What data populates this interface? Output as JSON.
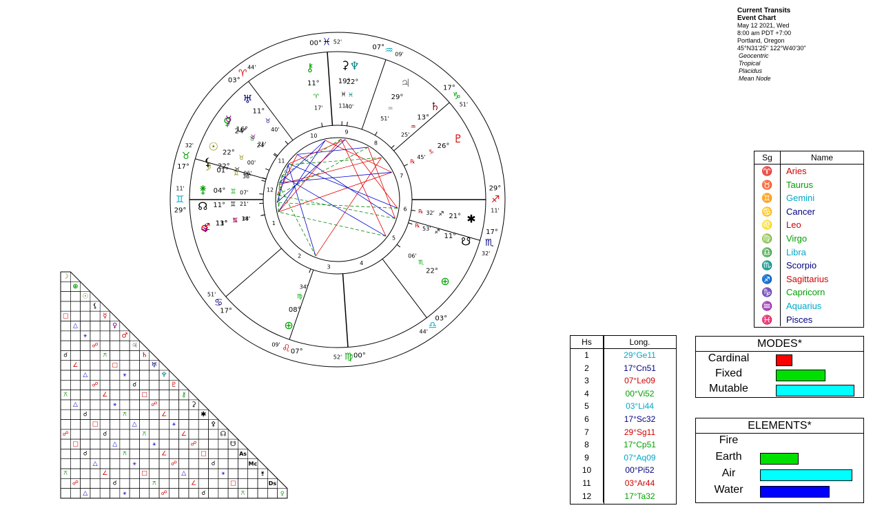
{
  "header": {
    "title": "Current Transits",
    "subtitle": "Event Chart",
    "lines": [
      "May 12 2021, Wed",
      "8:00 am  PDT +7:00",
      "Portland, Oregon",
      "45°N31'25\"  122°W40'30\""
    ],
    "options": [
      "Geocentric",
      "Tropical",
      "Placidus",
      "Mean Node"
    ]
  },
  "colors": {
    "fire": "#d00000",
    "earth": "#00a000",
    "air": "#00a8c8",
    "water": "#000080",
    "mode_cardinal": "#ff0000",
    "mode_fixed": "#00e000",
    "mode_mutable": "#00ffff",
    "el_earth": "#00e000",
    "el_air": "#00ffff",
    "el_water": "#0000ff",
    "aspect_red": "#e00000",
    "aspect_blue": "#0000cc",
    "aspect_green": "#008800"
  },
  "wheel": {
    "cusp_labels": [
      {
        "deg": "29°",
        "min": "11'",
        "sign": "♊",
        "color": "#00a8c8"
      },
      {
        "deg": "17°",
        "min": "51'",
        "sign": "♋",
        "color": "#000080"
      },
      {
        "deg": "07°",
        "min": "09'",
        "sign": "♌",
        "color": "#d00000"
      },
      {
        "deg": "00°",
        "min": "52'",
        "sign": "♍",
        "color": "#00a000"
      },
      {
        "deg": "03°",
        "min": "44'",
        "sign": "♎",
        "color": "#00a8c8"
      },
      {
        "deg": "17°",
        "min": "32'",
        "sign": "♏",
        "color": "#000080"
      },
      {
        "deg": "29°",
        "min": "11'",
        "sign": "♐",
        "color": "#d00000"
      },
      {
        "deg": "17°",
        "min": "51'",
        "sign": "♑",
        "color": "#00a000"
      },
      {
        "deg": "07°",
        "min": "09'",
        "sign": "♒",
        "color": "#00a8c8"
      },
      {
        "deg": "00°",
        "min": "52'",
        "sign": "♓",
        "color": "#000080"
      },
      {
        "deg": "03°",
        "min": "44'",
        "sign": "♈",
        "color": "#d00000"
      },
      {
        "deg": "17°",
        "min": "32'",
        "sign": "♉",
        "color": "#00a000"
      }
    ],
    "house_numbers": [
      "1",
      "2",
      "3",
      "4",
      "5",
      "6",
      "7",
      "8",
      "9",
      "10",
      "11",
      "12"
    ],
    "planets": [
      {
        "name": "Mars",
        "glyph": "♂",
        "deg": "11°",
        "sign": "♋",
        "min": "38'",
        "color": "#d00000"
      },
      {
        "name": "Part of Fortune",
        "glyph": "⊕",
        "deg": "08°",
        "sign": "♍",
        "min": "34'",
        "color": "#00a000"
      },
      {
        "name": "South Node",
        "glyph": "☋",
        "deg": "11°",
        "sign": "♐",
        "min": "53'",
        "retro": "℞",
        "color": "#000"
      },
      {
        "name": "Vertex",
        "glyph": "✱",
        "deg": "21°",
        "sign": "♐",
        "min": "32'",
        "retro": "℞",
        "color": "#000"
      },
      {
        "name": "Pallas",
        "glyph": "⊕",
        "deg": "22°",
        "sign": "♏",
        "min": "06'",
        "color": "#00a000"
      },
      {
        "name": "Pluto",
        "glyph": "♇",
        "deg": "26°",
        "sign": "♑",
        "min": "45'",
        "retro": "℞",
        "color": "#d00000"
      },
      {
        "name": "Saturn",
        "glyph": "♄",
        "deg": "13°",
        "sign": "♒",
        "min": "25'",
        "color": "#8b0000"
      },
      {
        "name": "Jupiter",
        "glyph": "♃",
        "deg": "29°",
        "sign": "♒",
        "min": "51'",
        "color": "#808080"
      },
      {
        "name": "Neptune",
        "glyph": "♆",
        "deg": "22°",
        "sign": "♓",
        "min": "40'",
        "color": "#008080"
      },
      {
        "name": "Ceres",
        "glyph": "⚳",
        "deg": "19°",
        "sign": "♓",
        "min": "11'",
        "color": "#000"
      },
      {
        "name": "Chiron",
        "glyph": "⚷",
        "deg": "11°",
        "sign": "♈",
        "min": "17'",
        "color": "#00a000"
      },
      {
        "name": "Venus",
        "glyph": "♀",
        "deg": "24°",
        "sign": "♉",
        "min": "24'",
        "color": "#00a000"
      },
      {
        "name": "Uranus",
        "glyph": "♅",
        "deg": "11°",
        "sign": "♉",
        "min": "40'",
        "color": "#000080"
      },
      {
        "name": "Mercury",
        "glyph": "☿",
        "deg": "16°",
        "sign": "♉",
        "min": "21'",
        "color": "#800080"
      },
      {
        "name": "Sun",
        "glyph": "☉",
        "deg": "22°",
        "sign": "♉",
        "min": "00'",
        "color": "#808000"
      },
      {
        "name": "Lilith",
        "glyph": "⚸",
        "deg": "22°",
        "sign": "♉",
        "min": "06'",
        "color": "#000"
      },
      {
        "name": "Moon",
        "glyph": "☽",
        "deg": "01°",
        "sign": "♊",
        "min": "36'",
        "color": "#808000"
      },
      {
        "name": "Juno",
        "glyph": "⚵",
        "deg": "04°",
        "sign": "♊",
        "min": "07'",
        "color": "#00a000"
      },
      {
        "name": "North Node",
        "glyph": "☊",
        "deg": "11°",
        "sign": "♊",
        "min": "21'",
        "color": "#000"
      },
      {
        "name": "Vesta",
        "glyph": "⚶",
        "deg": "13°",
        "sign": "♊",
        "min": "14'",
        "color": "#800080"
      }
    ]
  },
  "sign_table": {
    "headers": [
      "Sg",
      "Name"
    ],
    "rows": [
      {
        "glyph": "♈",
        "name": "Aries",
        "color": "#d00000"
      },
      {
        "glyph": "♉",
        "name": "Taurus",
        "color": "#00a000"
      },
      {
        "glyph": "♊",
        "name": "Gemini",
        "color": "#00a8c8"
      },
      {
        "glyph": "♋",
        "name": "Cancer",
        "color": "#000080"
      },
      {
        "glyph": "♌",
        "name": "Leo",
        "color": "#d00000"
      },
      {
        "glyph": "♍",
        "name": "Virgo",
        "color": "#00a000"
      },
      {
        "glyph": "♎",
        "name": "Libra",
        "color": "#00a8c8"
      },
      {
        "glyph": "♏",
        "name": "Scorpio",
        "color": "#000080"
      },
      {
        "glyph": "♐",
        "name": "Sagittarius",
        "color": "#d00000"
      },
      {
        "glyph": "♑",
        "name": "Capricorn",
        "color": "#00a000"
      },
      {
        "glyph": "♒",
        "name": "Aquarius",
        "color": "#00a8c8"
      },
      {
        "glyph": "♓",
        "name": "Pisces",
        "color": "#000080"
      }
    ]
  },
  "house_table": {
    "headers": [
      "Hs",
      "Long."
    ],
    "rows": [
      {
        "hs": "1",
        "long": "29°Ge11",
        "color": "#00a8c8"
      },
      {
        "hs": "2",
        "long": "17°Cn51",
        "color": "#000080"
      },
      {
        "hs": "3",
        "long": "07°Le09",
        "color": "#d00000"
      },
      {
        "hs": "4",
        "long": "00°Vi52",
        "color": "#00a000"
      },
      {
        "hs": "5",
        "long": "03°Li44",
        "color": "#00a8c8"
      },
      {
        "hs": "6",
        "long": "17°Sc32",
        "color": "#000080"
      },
      {
        "hs": "7",
        "long": "29°Sg11",
        "color": "#d00000"
      },
      {
        "hs": "8",
        "long": "17°Cp51",
        "color": "#00a000"
      },
      {
        "hs": "9",
        "long": "07°Aq09",
        "color": "#00a8c8"
      },
      {
        "hs": "10",
        "long": "00°Pi52",
        "color": "#000080"
      },
      {
        "hs": "11",
        "long": "03°Ar44",
        "color": "#d00000"
      },
      {
        "hs": "12",
        "long": "17°Ta32",
        "color": "#00a000"
      }
    ]
  },
  "modes": {
    "title": "MODES*",
    "rows": [
      {
        "label": "Cardinal",
        "value": 0.2,
        "color": "#ff0000"
      },
      {
        "label": "Fixed",
        "value": 0.6,
        "color": "#00e000"
      },
      {
        "label": "Mutable",
        "value": 0.95,
        "color": "#00ffff"
      }
    ]
  },
  "elements": {
    "title": "ELEMENTS*",
    "rows": [
      {
        "label": "Fire",
        "value": 0,
        "color": "#ff0000"
      },
      {
        "label": "Earth",
        "value": 0.4,
        "color": "#00e000"
      },
      {
        "label": "Air",
        "value": 0.96,
        "color": "#00ffff"
      },
      {
        "label": "Water",
        "value": 0.72,
        "color": "#0000ff"
      }
    ]
  },
  "aspect_grid": {
    "points": [
      "☽",
      "⊕",
      "☉",
      "⚸",
      "☿",
      "♀",
      "♂",
      "♃",
      "♄",
      "♅",
      "♆",
      "♇",
      "⚷",
      "⚳",
      "✱",
      "⚴",
      "☊",
      "☋",
      "As",
      "Mc",
      "⚵",
      "Ds",
      "♀"
    ],
    "colors": [
      "#808000",
      "#00a000",
      "#808000",
      "#000",
      "#d00000",
      "#800080",
      "#d00000",
      "#808080",
      "#8b0000",
      "#000080",
      "#008080",
      "#d00000",
      "#00a000",
      "#000",
      "#000",
      "#000",
      "#000",
      "#000",
      "#000",
      "#000",
      "#000",
      "#000",
      "#00a000"
    ]
  }
}
